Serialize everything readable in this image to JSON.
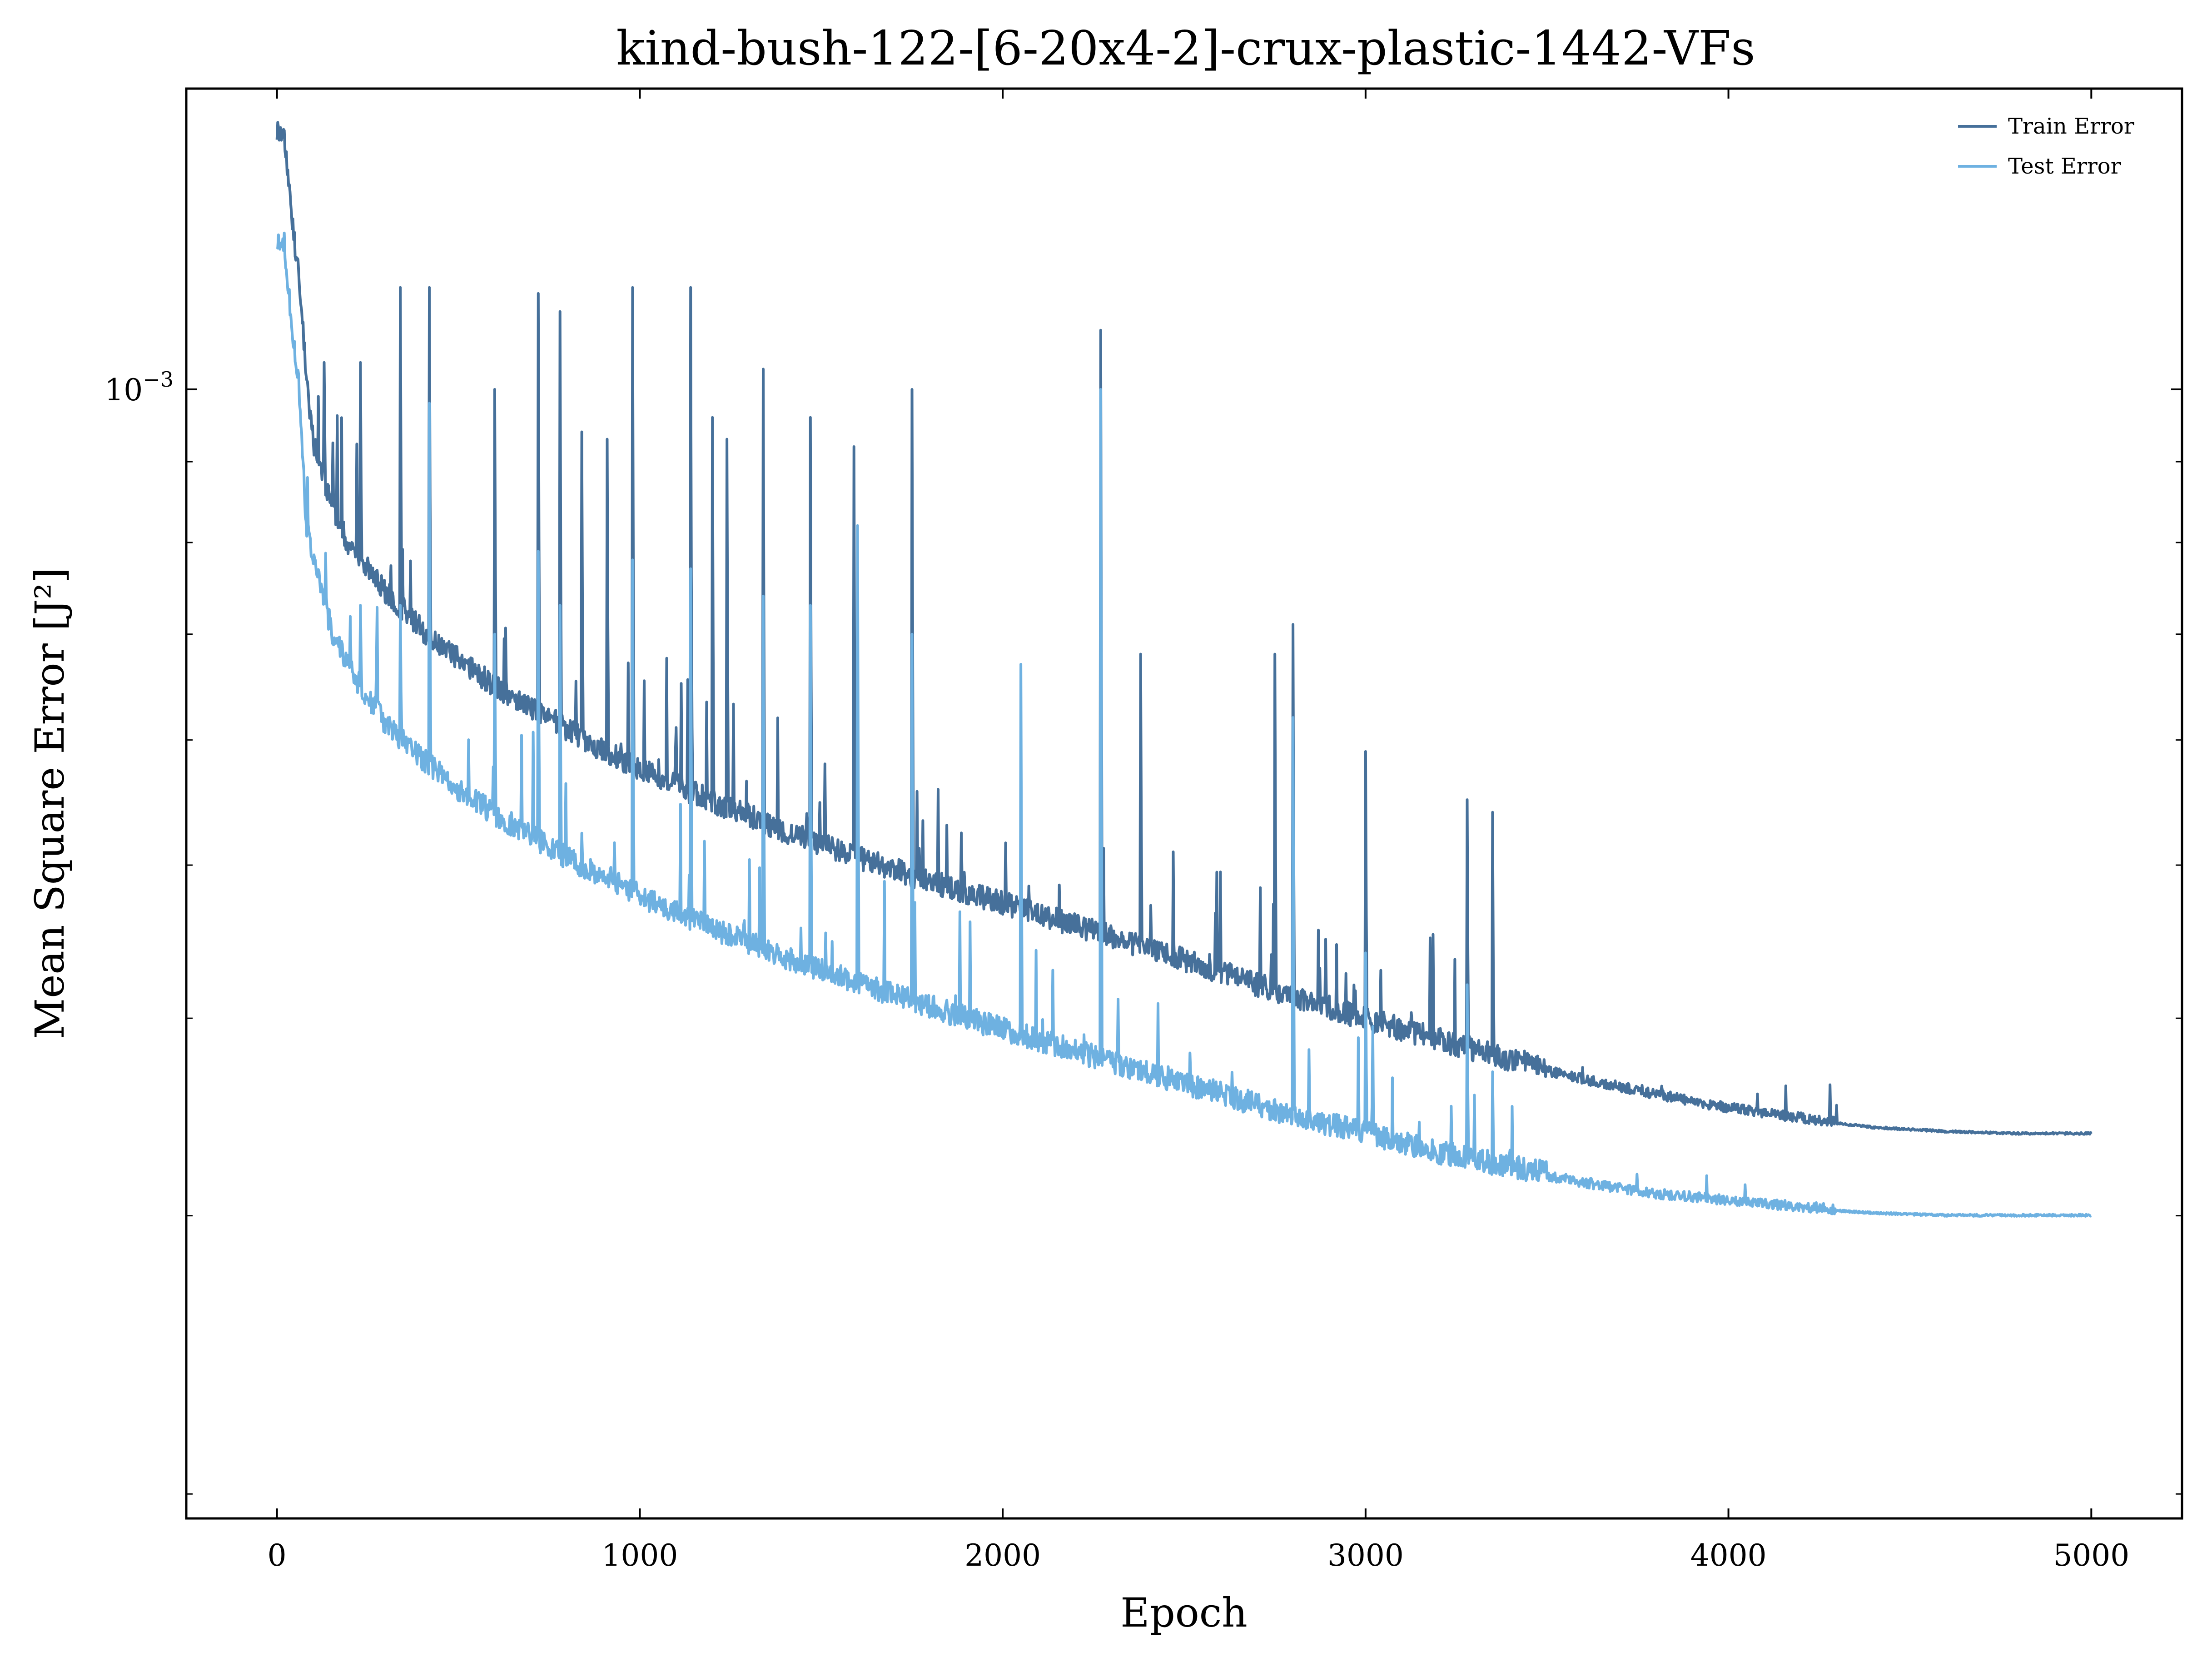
{
  "chart_data": {
    "type": "line",
    "title": "kind-bush-122-[6-20x4-2]-crux-plastic-1442-VFs",
    "xlabel": "Epoch",
    "ylabel": "Mean Square Error [J²]",
    "y_scale": "log",
    "xlim": [
      -250,
      5250
    ],
    "ylim": [
      0.000193,
      0.00155
    ],
    "x_ticks": [
      0,
      1000,
      2000,
      3000,
      4000,
      5000
    ],
    "x_tick_labels": [
      "0",
      "1000",
      "2000",
      "3000",
      "4000",
      "5000"
    ],
    "y_major_tick_label": "10",
    "y_major_tick_exp": "−3",
    "y_major_tick_value": 0.001,
    "legend_position": "top-right",
    "grid": false,
    "series": [
      {
        "name": "Train Error",
        "color": "#46709a",
        "x": [
          0,
          20,
          40,
          60,
          80,
          100,
          150,
          200,
          300,
          400,
          500,
          600,
          700,
          800,
          900,
          1000,
          1200,
          1400,
          1600,
          1800,
          2000,
          2200,
          2400,
          2600,
          2800,
          3000,
          3200,
          3400,
          3600,
          3800,
          4000,
          4200,
          4400,
          4600,
          4800,
          5000
        ],
        "y": [
          0.00145,
          0.00144,
          0.00128,
          0.00117,
          0.00102,
          0.00092,
          0.00084,
          0.00079,
          0.00074,
          0.0007,
          0.00067,
          0.000645,
          0.000625,
          0.000605,
          0.000587,
          0.000571,
          0.000545,
          0.000522,
          0.000502,
          0.000485,
          0.00047,
          0.000455,
          0.00044,
          0.000425,
          0.00041,
          0.000397,
          0.000385,
          0.000374,
          0.000365,
          0.000357,
          0.00035,
          0.000345,
          0.000341,
          0.000339,
          0.000338,
          0.000338
        ],
        "spikes": [
          [
            130,
            0.00104
          ],
          [
            230,
            0.00104
          ],
          [
            340,
            0.00116
          ],
          [
            420,
            0.00116
          ],
          [
            600,
            0.001
          ],
          [
            720,
            0.00115
          ],
          [
            780,
            0.00112
          ],
          [
            840,
            0.00094
          ],
          [
            910,
            0.00093
          ],
          [
            980,
            0.00116
          ],
          [
            1140,
            0.00116
          ],
          [
            1200,
            0.00096
          ],
          [
            1240,
            0.00093
          ],
          [
            1340,
            0.00103
          ],
          [
            1470,
            0.00096
          ],
          [
            1590,
            0.00092
          ],
          [
            1750,
            0.001
          ],
          [
            2270,
            0.00109
          ],
          [
            2380,
            0.00068
          ],
          [
            2750,
            0.00068
          ],
          [
            2800,
            0.00071
          ],
          [
            3000,
            0.00059
          ],
          [
            3280,
            0.00055
          ],
          [
            3350,
            0.00054
          ]
        ]
      },
      {
        "name": "Test Error",
        "color": "#6eb1e1",
        "x": [
          0,
          20,
          40,
          60,
          80,
          100,
          150,
          200,
          300,
          400,
          500,
          600,
          700,
          800,
          900,
          1000,
          1200,
          1400,
          1600,
          1800,
          2000,
          2200,
          2400,
          2600,
          2800,
          3000,
          3200,
          3400,
          3600,
          3800,
          4000,
          4200,
          4400,
          4600,
          4800,
          5000
        ],
        "y": [
          0.00124,
          0.00123,
          0.0011,
          0.001,
          0.00082,
          0.00078,
          0.0007,
          0.00066,
          0.00061,
          0.00058,
          0.000555,
          0.000535,
          0.000518,
          0.000502,
          0.000488,
          0.000475,
          0.000453,
          0.000434,
          0.000418,
          0.000404,
          0.000391,
          0.000379,
          0.000367,
          0.000356,
          0.000345,
          0.000336,
          0.000327,
          0.00032,
          0.000314,
          0.000309,
          0.000306,
          0.000303,
          0.000301,
          0.0003,
          0.0003,
          0.0003
        ],
        "spikes": [
          [
            130,
            0.00074
          ],
          [
            230,
            0.00073
          ],
          [
            340,
            0.00073
          ],
          [
            420,
            0.00098
          ],
          [
            600,
            0.0007
          ],
          [
            720,
            0.00079
          ],
          [
            780,
            0.00073
          ],
          [
            980,
            0.00078
          ],
          [
            1140,
            0.00077
          ],
          [
            1340,
            0.00074
          ],
          [
            1470,
            0.00073
          ],
          [
            1600,
            0.00082
          ],
          [
            1750,
            0.0007
          ],
          [
            2050,
            0.00067
          ],
          [
            2270,
            0.001
          ],
          [
            2800,
            0.00062
          ],
          [
            3000,
            0.00044
          ],
          [
            3280,
            0.00042
          ],
          [
            3350,
            0.00037
          ]
        ]
      }
    ]
  }
}
